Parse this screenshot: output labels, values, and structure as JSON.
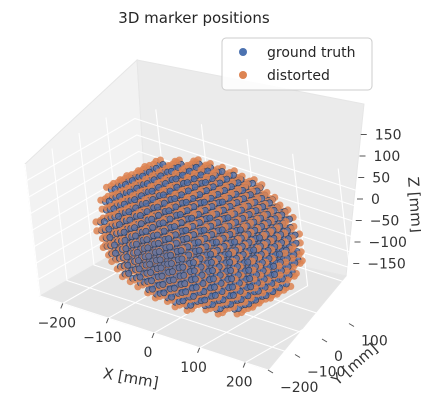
{
  "chart_data": {
    "type": "scatter",
    "projection": "3d",
    "title": "3D marker positions",
    "xlabel": "X [mm]",
    "ylabel": "Y [mm]",
    "zlabel": "Z [mm]",
    "xlim": [
      -250,
      250
    ],
    "ylim": [
      -200,
      200
    ],
    "zlim": [
      -200,
      200
    ],
    "xticks": [
      -200,
      -100,
      0,
      100,
      200
    ],
    "yticks": [
      -200,
      -100,
      0,
      100
    ],
    "zticks": [
      -150,
      -100,
      -50,
      0,
      50,
      100,
      150
    ],
    "xtick_labels": [
      "−200",
      "−100",
      "0",
      "100",
      "200"
    ],
    "ytick_labels": [
      "−200",
      "−100",
      "0",
      "100"
    ],
    "ztick_labels": [
      "−150",
      "−100",
      "−50",
      "0",
      "50",
      "100",
      "150"
    ],
    "grid": true,
    "legend_position": "upper right",
    "distribution": {
      "shape": "sphere",
      "center": [
        0,
        0,
        0
      ],
      "radius_mm": 190,
      "grid_spacing_mm": 25
    },
    "series": [
      {
        "name": "ground truth",
        "color": "#4c72b0"
      },
      {
        "name": "distorted",
        "color": "#dd8452"
      }
    ]
  }
}
